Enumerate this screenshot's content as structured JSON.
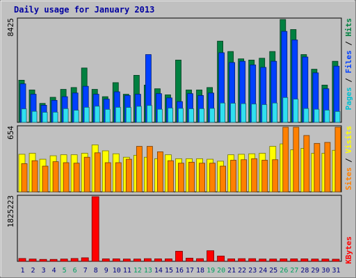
{
  "chart_data": [
    {
      "type": "bar",
      "title": "Daily usage for January 2013",
      "ylabel_top": "8425",
      "legend": [
        {
          "label": "Pages",
          "color": "#00c0d0"
        },
        {
          "label": "Files",
          "color": "#0040ff"
        },
        {
          "label": "Hits",
          "color": "#008040"
        }
      ],
      "x": [
        1,
        2,
        3,
        4,
        5,
        6,
        7,
        8,
        9,
        10,
        11,
        12,
        13,
        14,
        15,
        16,
        17,
        18,
        19,
        20,
        21,
        22,
        23,
        24,
        25,
        26,
        27,
        28,
        29,
        30,
        31
      ],
      "ylim": [
        0,
        8425
      ],
      "series": [
        {
          "name": "Hits",
          "values": [
            3450,
            2650,
            1550,
            2050,
            2700,
            2850,
            4450,
            2700,
            2100,
            3250,
            2300,
            3850,
            3050,
            2750,
            2250,
            5100,
            2650,
            2650,
            2850,
            6650,
            5800,
            5200,
            5100,
            5250,
            5800,
            8425,
            7600,
            5550,
            4350,
            3050,
            5000
          ]
        },
        {
          "name": "Files",
          "values": [
            3150,
            2300,
            1400,
            1800,
            2100,
            2400,
            2950,
            2300,
            1900,
            2500,
            2200,
            2300,
            5550,
            2350,
            2000,
            1700,
            2350,
            2200,
            2400,
            5700,
            4900,
            5000,
            4700,
            4500,
            5000,
            7450,
            6750,
            5350,
            4050,
            2750,
            4600
          ]
        },
        {
          "name": "Pages",
          "values": [
            1100,
            900,
            820,
            830,
            1120,
            990,
            1230,
            1320,
            1060,
            1230,
            1220,
            1310,
            1380,
            1070,
            1170,
            1140,
            1110,
            1120,
            1140,
            1580,
            1560,
            1530,
            1500,
            1450,
            1580,
            2030,
            1900,
            1130,
            1070,
            1000,
            890
          ]
        }
      ]
    },
    {
      "type": "bar",
      "ylabel_top": "654",
      "legend": [
        {
          "label": "Sites",
          "color": "#ff8000"
        },
        {
          "label": "Visits",
          "color": "#ffff00"
        }
      ],
      "x": [
        1,
        2,
        3,
        4,
        5,
        6,
        7,
        8,
        9,
        10,
        11,
        12,
        13,
        14,
        15,
        16,
        17,
        18,
        19,
        20,
        21,
        22,
        23,
        24,
        25,
        26,
        27,
        28,
        29,
        30,
        31
      ],
      "ylim": [
        0,
        654
      ],
      "series": [
        {
          "name": "Visits",
          "values": [
            380,
            390,
            330,
            365,
            375,
            375,
            390,
            475,
            415,
            385,
            350,
            370,
            350,
            335,
            375,
            335,
            335,
            335,
            330,
            310,
            375,
            380,
            385,
            390,
            460,
            485,
            425,
            440,
            390,
            390,
            420
          ]
        },
        {
          "name": "Sites",
          "values": [
            285,
            315,
            260,
            305,
            295,
            290,
            350,
            395,
            295,
            295,
            330,
            460,
            460,
            405,
            315,
            290,
            300,
            290,
            290,
            260,
            320,
            325,
            335,
            320,
            325,
            654,
            654,
            570,
            490,
            500,
            654
          ]
        }
      ]
    },
    {
      "type": "bar",
      "ylabel_top": "1825223",
      "legend": [
        {
          "label": "KBytes",
          "color": "#ff0000"
        }
      ],
      "x": [
        1,
        2,
        3,
        4,
        5,
        6,
        7,
        8,
        9,
        10,
        11,
        12,
        13,
        14,
        15,
        16,
        17,
        18,
        19,
        20,
        21,
        22,
        23,
        24,
        25,
        26,
        27,
        28,
        29,
        30,
        31
      ],
      "ylim": [
        0,
        1825223
      ],
      "series": [
        {
          "name": "KBytes",
          "values": [
            80000,
            65000,
            55000,
            55000,
            65000,
            80000,
            100000,
            1825223,
            70000,
            70000,
            65000,
            65000,
            75000,
            70000,
            70000,
            285000,
            90000,
            75000,
            300000,
            150000,
            70000,
            75000,
            75000,
            65000,
            65000,
            70000,
            70000,
            70000,
            65000,
            65000,
            60000
          ]
        }
      ]
    }
  ],
  "x_labels": [
    {
      "label": "1",
      "weekend": false
    },
    {
      "label": "2",
      "weekend": false
    },
    {
      "label": "3",
      "weekend": false
    },
    {
      "label": "4",
      "weekend": false
    },
    {
      "label": "5",
      "weekend": true
    },
    {
      "label": "6",
      "weekend": true
    },
    {
      "label": "7",
      "weekend": false
    },
    {
      "label": "8",
      "weekend": false
    },
    {
      "label": "9",
      "weekend": false
    },
    {
      "label": "10",
      "weekend": false
    },
    {
      "label": "11",
      "weekend": false
    },
    {
      "label": "12",
      "weekend": true
    },
    {
      "label": "13",
      "weekend": true
    },
    {
      "label": "14",
      "weekend": false
    },
    {
      "label": "15",
      "weekend": false
    },
    {
      "label": "16",
      "weekend": false
    },
    {
      "label": "17",
      "weekend": false
    },
    {
      "label": "18",
      "weekend": false
    },
    {
      "label": "19",
      "weekend": true
    },
    {
      "label": "20",
      "weekend": true
    },
    {
      "label": "21",
      "weekend": false
    },
    {
      "label": "22",
      "weekend": false
    },
    {
      "label": "23",
      "weekend": false
    },
    {
      "label": "24",
      "weekend": false
    },
    {
      "label": "25",
      "weekend": false
    },
    {
      "label": "26",
      "weekend": true
    },
    {
      "label": "27",
      "weekend": true
    },
    {
      "label": "28",
      "weekend": false
    },
    {
      "label": "29",
      "weekend": false
    },
    {
      "label": "30",
      "weekend": false
    },
    {
      "label": "31",
      "weekend": false
    }
  ],
  "colors": {
    "background": "#c0c0c0",
    "plot_background": "#c0c0c0",
    "title": "#0000a0",
    "weekday_label": "#000080",
    "weekend_label": "#00a060",
    "separator": "#ffffff"
  }
}
